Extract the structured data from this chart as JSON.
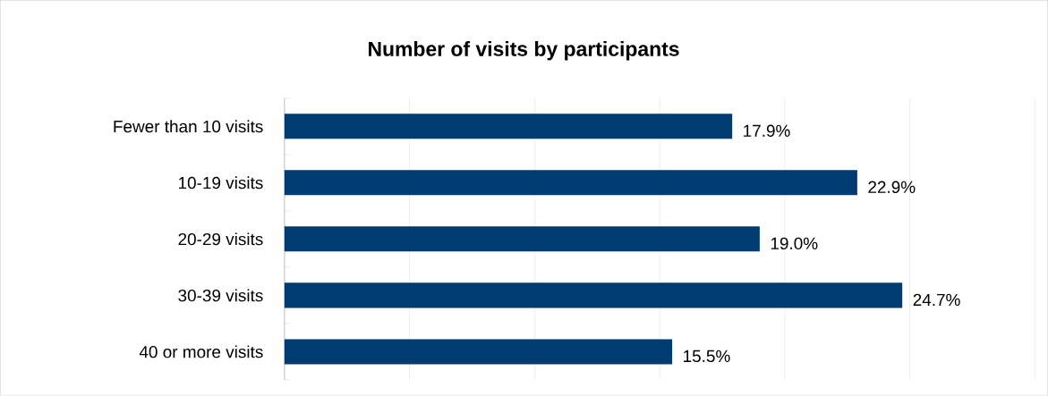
{
  "chart_data": {
    "type": "bar",
    "orientation": "horizontal",
    "title": "Number of visits by participants",
    "categories": [
      "Fewer than 10 visits",
      "10-19 visits",
      "20-29 visits",
      "30-39 visits",
      "40 or more visits"
    ],
    "values": [
      17.9,
      22.9,
      19.0,
      24.7,
      15.5
    ],
    "value_labels": [
      "17.9%",
      "22.9%",
      "19.0%",
      "24.7%",
      "15.5%"
    ],
    "color": "#003c71",
    "xlim": [
      0,
      30
    ],
    "xticks": [
      {
        "value": 0,
        "label": null
      },
      {
        "value": 5,
        "label": null
      },
      {
        "value": 10,
        "label": null
      },
      {
        "value": 15,
        "label": null
      },
      {
        "value": 20,
        "label": null
      },
      {
        "value": 25,
        "label": null
      },
      {
        "value": 30,
        "label": null
      }
    ],
    "grid": "x",
    "tick_labels": "y"
  }
}
